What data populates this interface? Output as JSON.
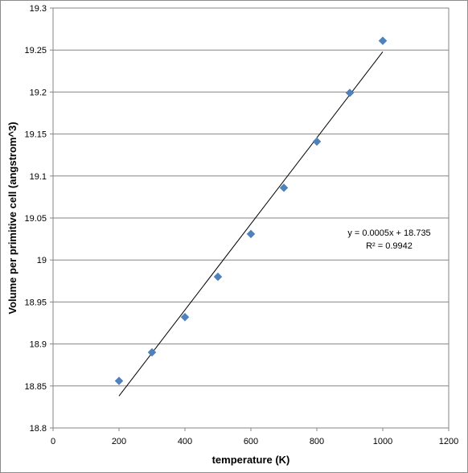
{
  "chart_data": {
    "type": "scatter",
    "title": "",
    "xlabel": "temperature (K)",
    "ylabel": "Volume per primitive cell (angstrom^3)",
    "xlim": [
      0,
      1200
    ],
    "ylim": [
      18.8,
      19.3
    ],
    "grid": "horizontal",
    "legend": "none",
    "x_ticks": [
      0,
      200,
      400,
      600,
      800,
      1000,
      1200
    ],
    "y_ticks": [
      18.8,
      18.85,
      18.9,
      18.95,
      19,
      19.05,
      19.1,
      19.15,
      19.2,
      19.25,
      19.3
    ],
    "x_tick_labels": [
      "0",
      "200",
      "400",
      "600",
      "800",
      "1000",
      "1200"
    ],
    "y_tick_labels": [
      "18.8",
      "18.85",
      "18.9",
      "18.95",
      "19",
      "19.05",
      "19.1",
      "19.15",
      "19.2",
      "19.25",
      "19.3"
    ],
    "marker_color": "#4f81bd",
    "trendline_color": "#000000",
    "series": [
      {
        "points": [
          {
            "x": 200,
            "y": 18.856
          },
          {
            "x": 300,
            "y": 18.89
          },
          {
            "x": 400,
            "y": 18.932
          },
          {
            "x": 500,
            "y": 18.98
          },
          {
            "x": 600,
            "y": 19.031
          },
          {
            "x": 700,
            "y": 19.086
          },
          {
            "x": 800,
            "y": 19.141
          },
          {
            "x": 900,
            "y": 19.199
          },
          {
            "x": 1000,
            "y": 19.261
          }
        ]
      }
    ],
    "trendline": {
      "type": "linear",
      "x_range": [
        200,
        1000
      ],
      "y_range": [
        18.838,
        19.248
      ],
      "equation": "y = 0.0005x + 18.735",
      "r_squared": "R² = 0.9942"
    }
  }
}
